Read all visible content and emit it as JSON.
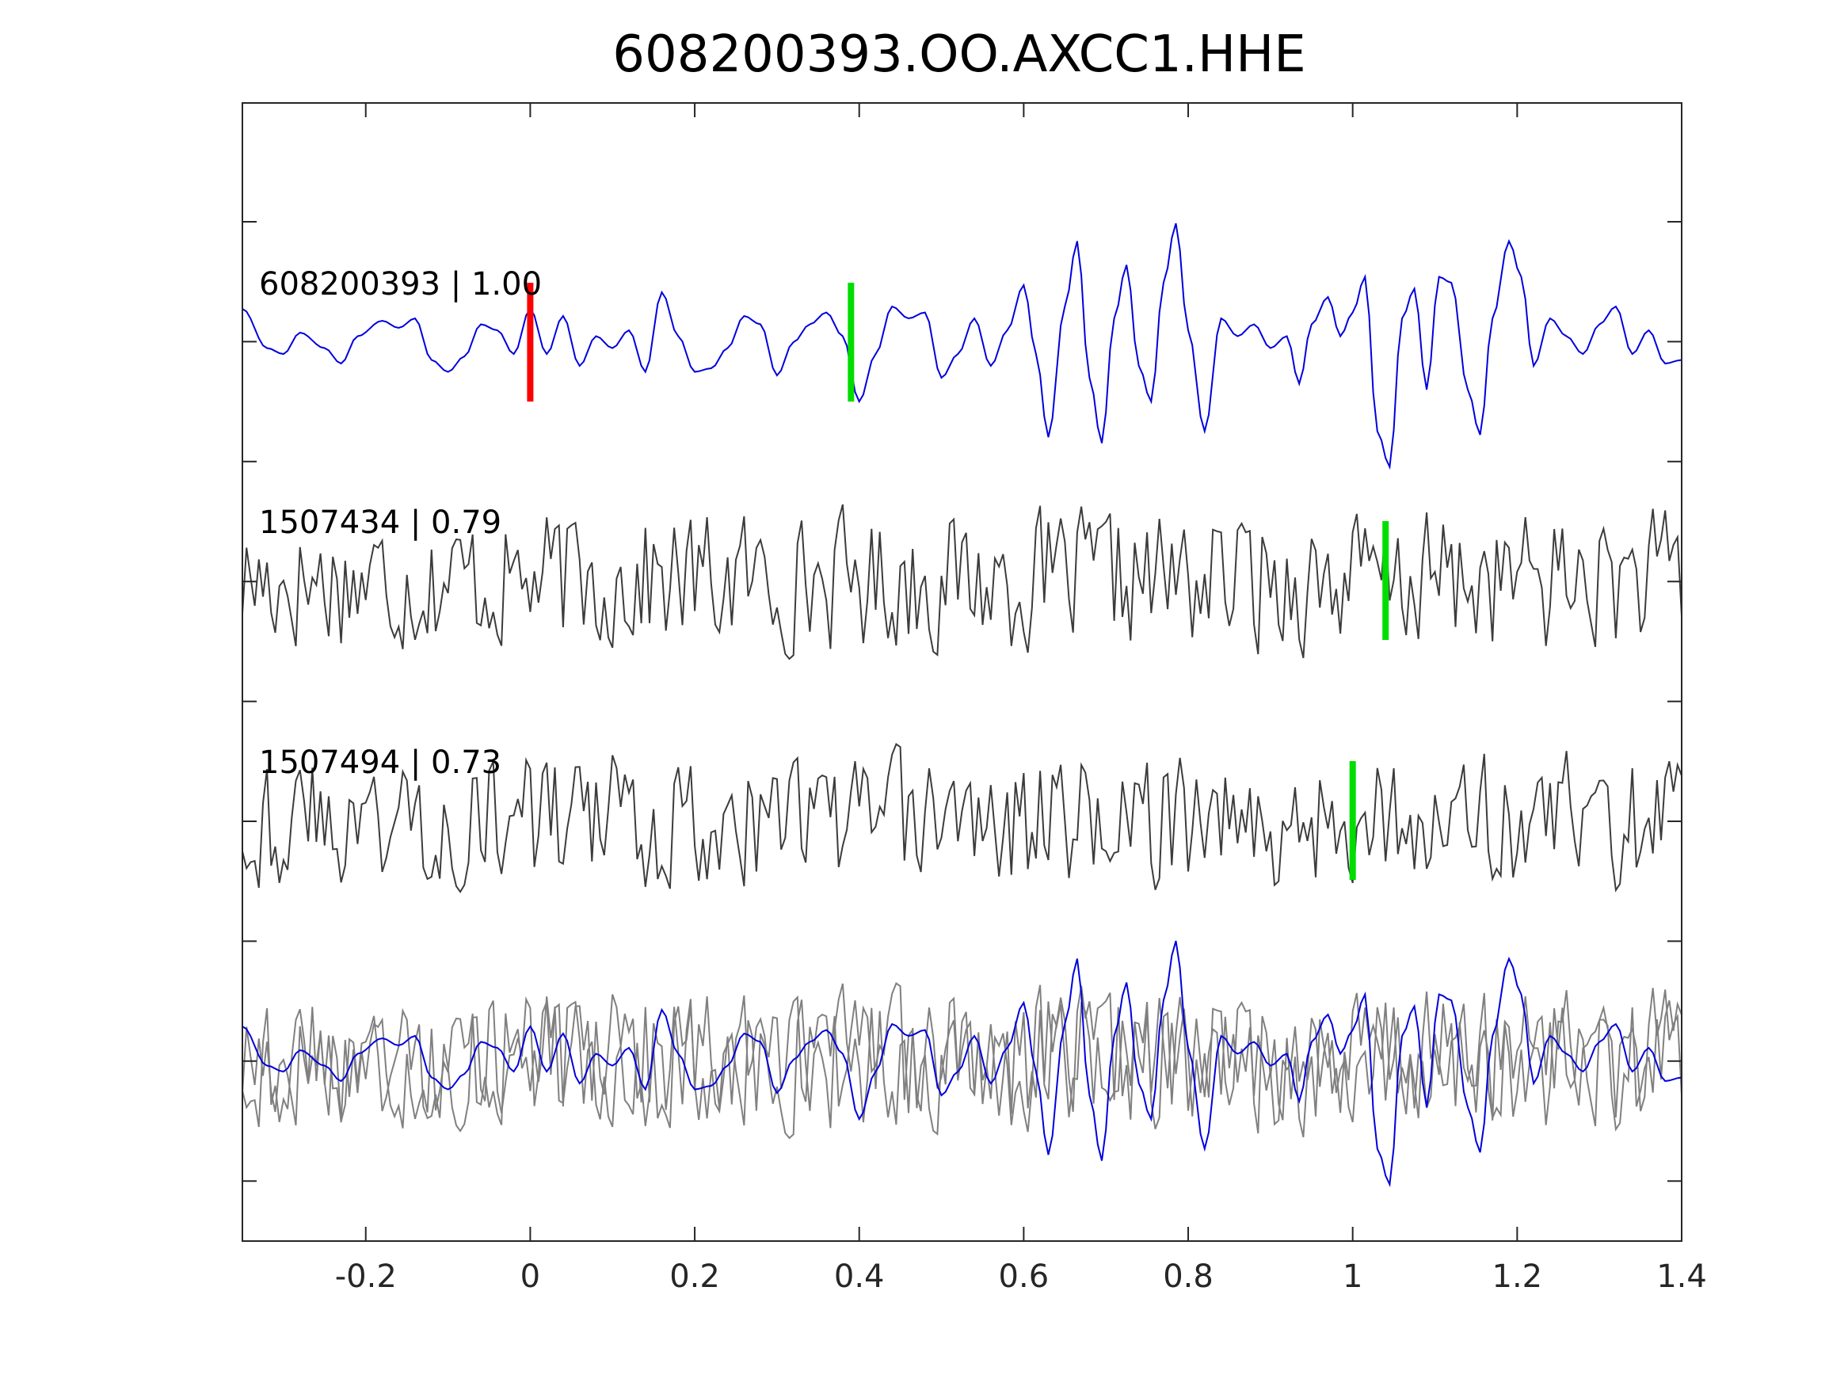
{
  "chart_data": {
    "type": "line",
    "title": "608200393.OO.AXCC1.HHE",
    "xlabel": "",
    "ylabel": "",
    "xlim": [
      -0.35,
      1.4
    ],
    "x_ticks": [
      -0.2,
      0,
      0.2,
      0.4,
      0.6,
      0.8,
      1,
      1.2,
      1.4
    ],
    "x_tick_labels": [
      "-0.2",
      "0",
      "0.2",
      "0.4",
      "0.6",
      "0.8",
      "1",
      "1.2",
      "1.4"
    ],
    "y_ticks_count": 9,
    "grid": false,
    "sample_interval": 0.005,
    "colors": {
      "reference": "#0000dd",
      "template": "#3c3c3c",
      "overlay": "#808080",
      "p_pick": "#ff0000",
      "s_pick": "#00dd00",
      "axes": "#262626"
    },
    "series": [
      {
        "name": "608200393 | 1.00",
        "role": "reference",
        "anchors": [
          [
            -0.35,
            0.28
          ],
          [
            -0.32,
            -0.05
          ],
          [
            -0.3,
            -0.1
          ],
          [
            -0.28,
            0.08
          ],
          [
            -0.25,
            -0.05
          ],
          [
            -0.23,
            -0.18
          ],
          [
            -0.21,
            0.05
          ],
          [
            -0.18,
            0.18
          ],
          [
            -0.16,
            0.12
          ],
          [
            -0.14,
            0.2
          ],
          [
            -0.12,
            -0.15
          ],
          [
            -0.1,
            -0.25
          ],
          [
            -0.08,
            -0.12
          ],
          [
            -0.06,
            0.15
          ],
          [
            -0.04,
            0.1
          ],
          [
            -0.02,
            -0.1
          ],
          [
            0.0,
            0.28
          ],
          [
            0.02,
            -0.1
          ],
          [
            0.04,
            0.22
          ],
          [
            0.06,
            -0.2
          ],
          [
            0.08,
            0.05
          ],
          [
            0.1,
            -0.05
          ],
          [
            0.12,
            0.1
          ],
          [
            0.14,
            -0.25
          ],
          [
            0.16,
            0.42
          ],
          [
            0.18,
            0.05
          ],
          [
            0.2,
            -0.25
          ],
          [
            0.22,
            -0.22
          ],
          [
            0.24,
            -0.05
          ],
          [
            0.26,
            0.22
          ],
          [
            0.28,
            0.15
          ],
          [
            0.3,
            -0.28
          ],
          [
            0.32,
            0.0
          ],
          [
            0.34,
            0.15
          ],
          [
            0.36,
            0.25
          ],
          [
            0.38,
            0.05
          ],
          [
            0.4,
            -0.5
          ],
          [
            0.42,
            -0.1
          ],
          [
            0.44,
            0.3
          ],
          [
            0.46,
            0.2
          ],
          [
            0.48,
            0.25
          ],
          [
            0.5,
            -0.3
          ],
          [
            0.52,
            -0.1
          ],
          [
            0.54,
            0.2
          ],
          [
            0.56,
            -0.2
          ],
          [
            0.58,
            0.1
          ],
          [
            0.6,
            0.48
          ],
          [
            0.615,
            -0.1
          ],
          [
            0.63,
            -0.8
          ],
          [
            0.65,
            0.3
          ],
          [
            0.665,
            0.85
          ],
          [
            0.68,
            -0.3
          ],
          [
            0.695,
            -0.85
          ],
          [
            0.71,
            0.2
          ],
          [
            0.725,
            0.65
          ],
          [
            0.74,
            -0.2
          ],
          [
            0.755,
            -0.5
          ],
          [
            0.77,
            0.5
          ],
          [
            0.785,
            1.0
          ],
          [
            0.8,
            0.1
          ],
          [
            0.82,
            -0.75
          ],
          [
            0.84,
            0.2
          ],
          [
            0.86,
            0.05
          ],
          [
            0.88,
            0.15
          ],
          [
            0.9,
            -0.05
          ],
          [
            0.92,
            0.05
          ],
          [
            0.935,
            -0.35
          ],
          [
            0.95,
            0.15
          ],
          [
            0.97,
            0.38
          ],
          [
            0.985,
            0.05
          ],
          [
            1.0,
            0.25
          ],
          [
            1.015,
            0.55
          ],
          [
            1.03,
            -0.75
          ],
          [
            1.045,
            -1.05
          ],
          [
            1.06,
            0.2
          ],
          [
            1.075,
            0.45
          ],
          [
            1.09,
            -0.4
          ],
          [
            1.105,
            0.55
          ],
          [
            1.12,
            0.5
          ],
          [
            1.14,
            -0.4
          ],
          [
            1.155,
            -0.78
          ],
          [
            1.17,
            0.2
          ],
          [
            1.19,
            0.85
          ],
          [
            1.205,
            0.55
          ],
          [
            1.22,
            -0.2
          ],
          [
            1.24,
            0.2
          ],
          [
            1.26,
            0.05
          ],
          [
            1.28,
            -0.1
          ],
          [
            1.3,
            0.15
          ],
          [
            1.32,
            0.3
          ],
          [
            1.34,
            -0.1
          ],
          [
            1.36,
            0.1
          ],
          [
            1.38,
            -0.18
          ],
          [
            1.4,
            -0.15
          ]
        ]
      },
      {
        "name": "1507434 | 0.79",
        "role": "template",
        "label_name": "1507434",
        "label_value": "0.79",
        "seed": 17,
        "amplitude": 0.72
      },
      {
        "name": "1507494 | 0.73",
        "role": "template",
        "label_name": "1507494",
        "label_value": "0.73",
        "seed": 43,
        "amplitude": 0.7
      }
    ],
    "labels": [
      "608200393 | 1.00",
      "1507434 | 0.79",
      "1507494 | 0.73"
    ],
    "picks": [
      {
        "trace": 0,
        "phase": "P",
        "x": 0.0,
        "color": "#ff0000"
      },
      {
        "trace": 0,
        "phase": "S",
        "x": 0.39,
        "color": "#00dd00"
      },
      {
        "trace": 1,
        "phase": "S",
        "x": 1.04,
        "color": "#00dd00"
      },
      {
        "trace": 2,
        "phase": "S",
        "x": 1.0,
        "color": "#00dd00"
      }
    ],
    "overlay": "traces 0-2 overlaid on the bottom row"
  }
}
